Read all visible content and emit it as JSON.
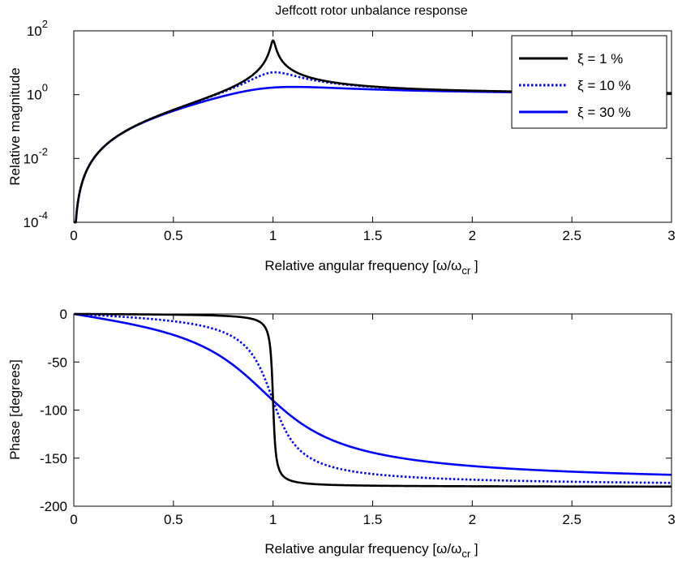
{
  "chart_data": [
    {
      "type": "line",
      "title": "Jeffcott rotor unbalance response",
      "xlabel_base": "Relative angular frequency [",
      "xlabel_omega": "ω",
      "xlabel_slash": "/ω",
      "xlabel_sub": "cr",
      "xlabel_end": " ]",
      "ylabel": "Relative magnitude",
      "yscale": "log",
      "xlim": [
        0,
        3
      ],
      "ylim": [
        0.0001,
        100
      ],
      "xticks": [
        "0",
        "0.5",
        "1",
        "1.5",
        "2",
        "2.5",
        "3"
      ],
      "xtick_values": [
        0,
        0.5,
        1,
        1.5,
        2,
        2.5,
        3
      ],
      "yticks": [
        {
          "base": "10",
          "exp": "-4",
          "value": 0.0001
        },
        {
          "base": "10",
          "exp": "-2",
          "value": 0.01
        },
        {
          "base": "10",
          "exp": "0",
          "value": 1
        },
        {
          "base": "10",
          "exp": "2",
          "value": 100
        }
      ],
      "legend_position": "top-right",
      "series": [
        {
          "name": "ξ = 1 %",
          "zeta": 0.01,
          "color": "#000000",
          "style": "solid"
        },
        {
          "name": "ξ = 10 %",
          "zeta": 0.1,
          "color": "#0000ff",
          "style": "dotted"
        },
        {
          "name": "ξ = 30 %",
          "zeta": 0.3,
          "color": "#0000ff",
          "style": "solid"
        }
      ]
    },
    {
      "type": "line",
      "xlabel_base": "Relative angular frequency [",
      "xlabel_omega": "ω",
      "xlabel_slash": "/ω",
      "xlabel_sub": "cr",
      "xlabel_end": " ]",
      "ylabel": "Phase [degrees]",
      "xlim": [
        0,
        3
      ],
      "ylim": [
        -200,
        0
      ],
      "xticks": [
        "0",
        "0.5",
        "1",
        "1.5",
        "2",
        "2.5",
        "3"
      ],
      "xtick_values": [
        0,
        0.5,
        1,
        1.5,
        2,
        2.5,
        3
      ],
      "yticks": [
        "0",
        "-50",
        "-100",
        "-150",
        "-200"
      ],
      "ytick_values": [
        0,
        -50,
        -100,
        -150,
        -200
      ],
      "series": [
        {
          "name": "ξ = 1 %",
          "zeta": 0.01,
          "color": "#000000",
          "style": "solid"
        },
        {
          "name": "ξ = 10 %",
          "zeta": 0.1,
          "color": "#0000ff",
          "style": "dotted"
        },
        {
          "name": "ξ = 30 %",
          "zeta": 0.3,
          "color": "#0000ff",
          "style": "solid"
        }
      ]
    }
  ]
}
